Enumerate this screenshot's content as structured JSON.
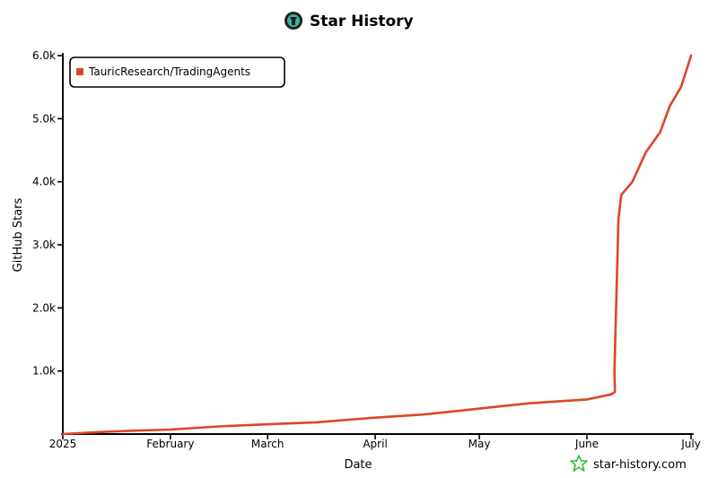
{
  "header": {
    "title": "Star History",
    "logo_icon": "github-logo-icon"
  },
  "footer": {
    "brand": "star-history.com",
    "brand_icon": "star-icon"
  },
  "chart_data": {
    "type": "line",
    "title": "Star History",
    "xlabel": "Date",
    "ylabel": "GitHub Stars",
    "x_ticks": [
      "2025",
      "February",
      "March",
      "April",
      "May",
      "June",
      "July"
    ],
    "y_ticks": [
      "1.0k",
      "2.0k",
      "3.0k",
      "4.0k",
      "5.0k",
      "6.0k"
    ],
    "ylim": [
      0,
      6000
    ],
    "xlim": [
      "2025-01-01",
      "2025-07-01"
    ],
    "grid": false,
    "legend_position": "top-left",
    "colors": {
      "series": "#dd4528",
      "axis": "#000000"
    },
    "series": [
      {
        "name": "TauricResearch/TradingAgents",
        "points": [
          [
            "2025-01-01",
            0
          ],
          [
            "2025-01-10",
            20
          ],
          [
            "2025-01-20",
            50
          ],
          [
            "2025-02-01",
            80
          ],
          [
            "2025-02-15",
            110
          ],
          [
            "2025-03-01",
            160
          ],
          [
            "2025-03-15",
            190
          ],
          [
            "2025-04-01",
            250
          ],
          [
            "2025-04-15",
            320
          ],
          [
            "2025-05-01",
            400
          ],
          [
            "2025-05-15",
            480
          ],
          [
            "2025-06-01",
            560
          ],
          [
            "2025-06-08",
            620
          ],
          [
            "2025-06-09",
            670
          ],
          [
            "2025-06-09",
            1000
          ],
          [
            "2025-06-10",
            3400
          ],
          [
            "2025-06-11",
            3800
          ],
          [
            "2025-06-14",
            4000
          ],
          [
            "2025-06-18",
            4450
          ],
          [
            "2025-06-22",
            4800
          ],
          [
            "2025-06-25",
            5200
          ],
          [
            "2025-06-28",
            5500
          ],
          [
            "2025-07-01",
            6000
          ]
        ]
      }
    ]
  }
}
